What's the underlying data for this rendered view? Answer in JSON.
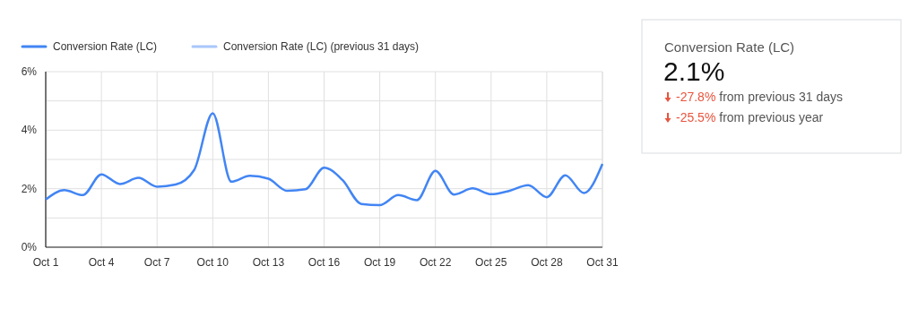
{
  "chart_data": [
    {
      "type": "line",
      "categories": [
        "Oct 1",
        null,
        null,
        "Oct 4",
        null,
        null,
        "Oct 7",
        null,
        null,
        "Oct 10",
        null,
        null,
        "Oct 13",
        null,
        null,
        "Oct 16",
        null,
        null,
        "Oct 19",
        null,
        null,
        "Oct 22",
        null,
        null,
        "Oct 25",
        null,
        null,
        "Oct 28",
        null,
        null,
        "Oct 31"
      ],
      "series": [
        {
          "name": "Conversion Rate (LC)",
          "color": "#4285f4",
          "values": [
            1.63,
            1.95,
            1.78,
            2.49,
            2.16,
            2.37,
            2.07,
            2.14,
            2.64,
            4.58,
            2.24,
            2.44,
            2.34,
            1.93,
            1.98,
            2.72,
            2.29,
            1.48,
            1.44,
            1.78,
            1.61,
            2.61,
            1.8,
            2.01,
            1.81,
            1.93,
            2.12,
            1.71,
            2.46,
            1.85,
            2.85
          ]
        },
        {
          "name": "Conversion Rate (LC) (previous 31 days)",
          "color": "#a8c7fa",
          "values": [
            null,
            null,
            null,
            null,
            null,
            null,
            null,
            null,
            null,
            null,
            null,
            null,
            null,
            null,
            null,
            null,
            null,
            null,
            null,
            null,
            null,
            null,
            null,
            null,
            null,
            null,
            null,
            null,
            null,
            null,
            null
          ]
        }
      ],
      "ylim": [
        0,
        6
      ],
      "yticks": [
        {
          "value": 0,
          "label": "0%"
        },
        {
          "value": 1,
          "label": null
        },
        {
          "value": 2,
          "label": "2%"
        },
        {
          "value": 3,
          "label": null
        },
        {
          "value": 4,
          "label": "4%"
        },
        {
          "value": 5,
          "label": null
        },
        {
          "value": 6,
          "label": "6%"
        }
      ],
      "grid": true,
      "legend": "top left",
      "marker": "none",
      "line_style": "solid"
    },
    {
      "type": "other",
      "title": "Conversion Rate (LC)",
      "annotations": [
        "2.1%",
        "-27.8%",
        "from previous 31 days",
        "-25.5%",
        "from previous year"
      ]
    }
  ]
}
